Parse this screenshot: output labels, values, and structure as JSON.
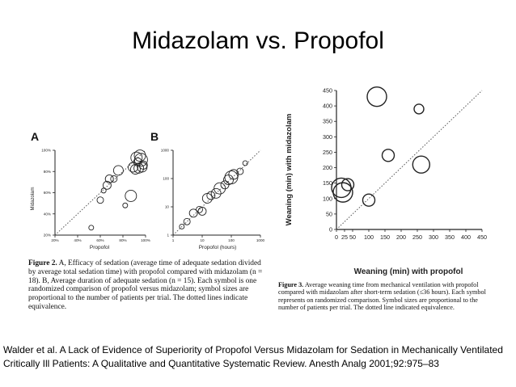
{
  "title": "Midazolam vs. Propofol",
  "panel_a": {
    "panel_label": "A",
    "y_axis_label": "Midazolam",
    "x_axis_label": "Propofol"
  },
  "panel_b": {
    "panel_label": "B",
    "x_axis_label": "Propofol (hours)"
  },
  "panel_right": {
    "y_axis_label": "Weaning (min) with midazolam",
    "x_axis_label": "Weaning (min) with propofol"
  },
  "caption_fig2": {
    "label": "Figure 2.",
    "text": "A, Efficacy of sedation (average time of adequate sedation divided by average total sedation time) with propofol compared with midazolam (n = 18). B, Average duration of adequate sedation (n = 15). Each symbol is one randomized comparison of propofol versus midazolam; symbol sizes are proportional to the number of patients per trial. The dotted lines indicate equivalence."
  },
  "caption_fig3": {
    "label": "Figure 3.",
    "text": "Average weaning time from mechanical ventilation with propofol compared with midazolam after short-term sedation (≤36 hours). Each symbol represents on randomized comparison. Symbol sizes are proportional to the number of patients per trial. The dotted line indicated equivalence."
  },
  "citation": "Walder et al. A Lack of Evidence of Superiority of Propofol Versus Midazolam for Sedation in Mechanically Ventilated Critically Ill Patients: A Qualitative and Quantitative Systematic Review. Anesth Analg 2001;92:975–83",
  "chart_data": [
    {
      "type": "scatter",
      "title": "A",
      "xlabel": "Propofol",
      "ylabel": "Midazolam",
      "xlim": [
        20,
        100
      ],
      "ylim": [
        20,
        100
      ],
      "x_ticks": [
        "20%",
        "40%",
        "60%",
        "80%",
        "100%"
      ],
      "y_ticks": [
        "20%",
        "40%",
        "60%",
        "80%",
        "100%"
      ],
      "reference_line": "equivalence (dotted)",
      "points": [
        {
          "x": 52,
          "y": 27,
          "size": 3
        },
        {
          "x": 60,
          "y": 53,
          "size": 4
        },
        {
          "x": 63,
          "y": 62,
          "size": 3
        },
        {
          "x": 66,
          "y": 67,
          "size": 5
        },
        {
          "x": 68,
          "y": 73,
          "size": 5
        },
        {
          "x": 72,
          "y": 73,
          "size": 4
        },
        {
          "x": 76,
          "y": 81,
          "size": 6
        },
        {
          "x": 82,
          "y": 48,
          "size": 3
        },
        {
          "x": 87,
          "y": 57,
          "size": 7
        },
        {
          "x": 89,
          "y": 84,
          "size": 6
        },
        {
          "x": 91,
          "y": 82,
          "size": 6
        },
        {
          "x": 92,
          "y": 93,
          "size": 7
        },
        {
          "x": 93,
          "y": 89,
          "size": 5
        },
        {
          "x": 94,
          "y": 83,
          "size": 6
        },
        {
          "x": 95,
          "y": 95,
          "size": 7
        },
        {
          "x": 96,
          "y": 91,
          "size": 8
        },
        {
          "x": 97,
          "y": 84,
          "size": 6
        },
        {
          "x": 98,
          "y": 86,
          "size": 5
        }
      ]
    },
    {
      "type": "scatter",
      "title": "B",
      "xlabel": "Propofol (hours)",
      "ylabel": "",
      "scale": "log",
      "xlim": [
        1,
        1000
      ],
      "ylim": [
        1,
        1000
      ],
      "x_ticks": [
        "1",
        "10",
        "100",
        "1000"
      ],
      "y_ticks": [
        "1",
        "10",
        "100",
        "1000"
      ],
      "reference_line": "equivalence (dotted)",
      "points": [
        {
          "x": 3,
          "y": 3,
          "size": 4
        },
        {
          "x": 5,
          "y": 6,
          "size": 5
        },
        {
          "x": 8,
          "y": 8,
          "size": 4
        },
        {
          "x": 10,
          "y": 7,
          "size": 5
        },
        {
          "x": 15,
          "y": 20,
          "size": 6
        },
        {
          "x": 20,
          "y": 25,
          "size": 5
        },
        {
          "x": 30,
          "y": 30,
          "size": 6
        },
        {
          "x": 40,
          "y": 45,
          "size": 7
        },
        {
          "x": 60,
          "y": 60,
          "size": 5
        },
        {
          "x": 80,
          "y": 90,
          "size": 6
        },
        {
          "x": 100,
          "y": 110,
          "size": 8
        },
        {
          "x": 120,
          "y": 140,
          "size": 6
        },
        {
          "x": 200,
          "y": 180,
          "size": 4
        },
        {
          "x": 300,
          "y": 350,
          "size": 3
        },
        {
          "x": 2,
          "y": 2,
          "size": 3
        }
      ]
    },
    {
      "type": "scatter",
      "title": "",
      "xlabel": "Weaning (min) with propofol",
      "ylabel": "Weaning (min) with midazolam",
      "xlim": [
        0,
        450
      ],
      "ylim": [
        0,
        450
      ],
      "x_ticks": [
        "0",
        "25",
        "50",
        "100",
        "150",
        "200",
        "250",
        "300",
        "350",
        "400",
        "450"
      ],
      "y_ticks": [
        "0",
        "50",
        "100",
        "150",
        "200",
        "250",
        "300",
        "350",
        "400",
        "450"
      ],
      "reference_line": "equivalence (dotted)",
      "points": [
        {
          "x": 15,
          "y": 135,
          "size": 8
        },
        {
          "x": 20,
          "y": 120,
          "size": 8
        },
        {
          "x": 35,
          "y": 145,
          "size": 5
        },
        {
          "x": 100,
          "y": 95,
          "size": 5
        },
        {
          "x": 125,
          "y": 430,
          "size": 8
        },
        {
          "x": 160,
          "y": 240,
          "size": 5
        },
        {
          "x": 255,
          "y": 390,
          "size": 4
        },
        {
          "x": 262,
          "y": 210,
          "size": 7
        }
      ]
    }
  ]
}
